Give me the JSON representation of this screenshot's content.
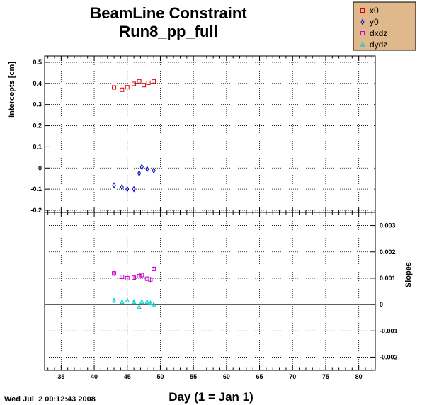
{
  "chart_data": {
    "type": "scatter",
    "title": [
      "BeamLine Constraint",
      "Run8_pp_full"
    ],
    "xlabel": "Day (1 = Jan 1)",
    "xlim": [
      32.5,
      82.5
    ],
    "x_ticks": [
      35,
      40,
      45,
      50,
      55,
      60,
      65,
      70,
      75,
      80
    ],
    "grid": true,
    "timestamp": "Wed Jul  2 00:12:43 2008",
    "legend": {
      "placement": "top-right",
      "entries": [
        {
          "label": "x0",
          "color": "#dd0000",
          "marker": "square"
        },
        {
          "label": "y0",
          "color": "#0000cc",
          "marker": "diamond"
        },
        {
          "label": "dxdz",
          "color": "#cc00cc",
          "marker": "square"
        },
        {
          "label": "dydz",
          "color": "#00cccc",
          "marker": "triangle"
        }
      ]
    },
    "panels": [
      {
        "name": "intercepts",
        "ylabel": "Intercepts [cm]",
        "ylim": [
          -0.21,
          0.53
        ],
        "y_ticks": [
          -0.2,
          -0.1,
          0,
          0.1,
          0.2,
          0.3,
          0.4,
          0.5
        ],
        "y_tick_labels": [
          "-0.2",
          "-0.1",
          "0",
          "0.1",
          "0.2",
          "0.3",
          "0.4",
          "0.5"
        ],
        "axis_side": "left",
        "series": [
          {
            "name": "x0",
            "color": "#dd0000",
            "marker": "square",
            "x": [
              43,
              44.2,
              45,
              46,
              46.8,
              47.5,
              48.2,
              49
            ],
            "y": [
              0.381,
              0.37,
              0.382,
              0.398,
              0.41,
              0.392,
              0.403,
              0.41
            ]
          },
          {
            "name": "y0",
            "color": "#0000cc",
            "marker": "diamond",
            "x": [
              43,
              44.2,
              45,
              46,
              46.8,
              47.2,
              48,
              49
            ],
            "y": [
              -0.082,
              -0.09,
              -0.1,
              -0.1,
              -0.025,
              0.005,
              -0.005,
              -0.012
            ]
          }
        ]
      },
      {
        "name": "slopes",
        "ylabel": "Slopes",
        "ylim": [
          -0.0025,
          0.0035
        ],
        "y_ticks": [
          -0.002,
          -0.001,
          0,
          0.001,
          0.002,
          0.003
        ],
        "y_tick_labels": [
          "-0.002",
          "-0.001",
          "0",
          "0.001",
          "0.002",
          "0.003"
        ],
        "axis_side": "right",
        "zero_line": true,
        "series": [
          {
            "name": "dxdz",
            "color": "#cc00cc",
            "marker": "square",
            "x": [
              43,
              44.2,
              45,
              46,
              46.8,
              47.2,
              48,
              48.5,
              49
            ],
            "y": [
              0.00118,
              0.00105,
              0.001,
              0.00102,
              0.00108,
              0.00112,
              0.00098,
              0.00095,
              0.00135
            ]
          },
          {
            "name": "dydz",
            "color": "#00cccc",
            "marker": "triangle",
            "x": [
              43,
              44.2,
              45,
              46,
              46.8,
              47.2,
              48,
              48.5,
              49
            ],
            "y": [
              0.00015,
              0.0001,
              0.00015,
              0.0001,
              -0.0001,
              0.0001,
              0.0001,
              5e-05,
              0.0
            ]
          }
        ]
      }
    ]
  }
}
